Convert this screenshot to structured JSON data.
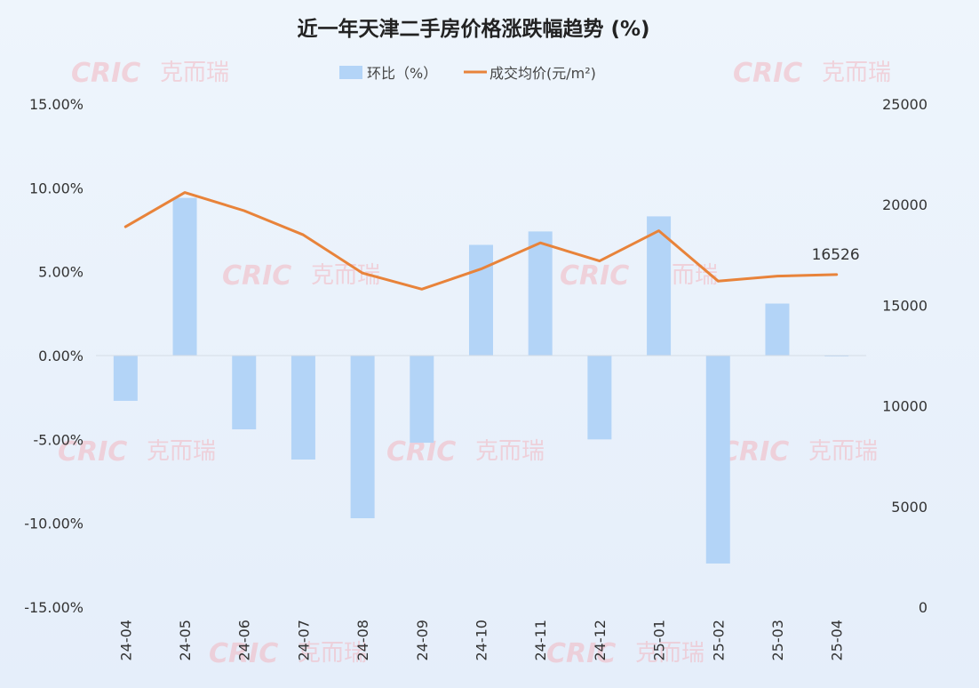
{
  "chart_data": {
    "type": "bar",
    "title": "近一年天津二手房价格涨跌幅趋势 (%)",
    "categories": [
      "24-04",
      "24-05",
      "24-06",
      "24-07",
      "24-08",
      "24-09",
      "24-10",
      "24-11",
      "24-12",
      "25-01",
      "25-02",
      "25-03",
      "25-04"
    ],
    "series": [
      {
        "name": "环比（%）",
        "type": "bar",
        "axis": "left",
        "color": "#b3d4f7",
        "values": [
          -2.7,
          9.4,
          -4.4,
          -6.2,
          -9.7,
          -5.2,
          6.6,
          7.4,
          -5.0,
          8.3,
          -12.4,
          3.1,
          -0.05
        ]
      },
      {
        "name": "成交均价(元/m²)",
        "type": "line",
        "axis": "right",
        "color": "#e8833a",
        "values": [
          18900,
          20600,
          19700,
          18500,
          16600,
          15800,
          16800,
          18100,
          17200,
          18700,
          16200,
          16450,
          16526
        ]
      }
    ],
    "y_left": {
      "ylim": [
        -15,
        15
      ],
      "ticks": [
        15,
        10,
        5,
        0,
        -5,
        -10,
        -15
      ],
      "tick_labels": [
        "15.00%",
        "10.00%",
        "5.00%",
        "0.00%",
        "-5.00%",
        "-10.00%",
        "-15.00%"
      ]
    },
    "y_right": {
      "ylim": [
        0,
        25000
      ],
      "ticks": [
        25000,
        20000,
        15000,
        10000,
        5000,
        0
      ],
      "tick_labels": [
        "25000",
        "20000",
        "15000",
        "10000",
        "5000",
        "0"
      ]
    },
    "annotations": [
      {
        "category": "25-04",
        "text": "16526"
      }
    ],
    "legend": {
      "position": "top-center",
      "items": [
        "环比（%）",
        "成交均价(元/m²)"
      ]
    },
    "grid": false
  },
  "watermark": {
    "latin": "CRIC",
    "cjk": "克而瑞"
  }
}
